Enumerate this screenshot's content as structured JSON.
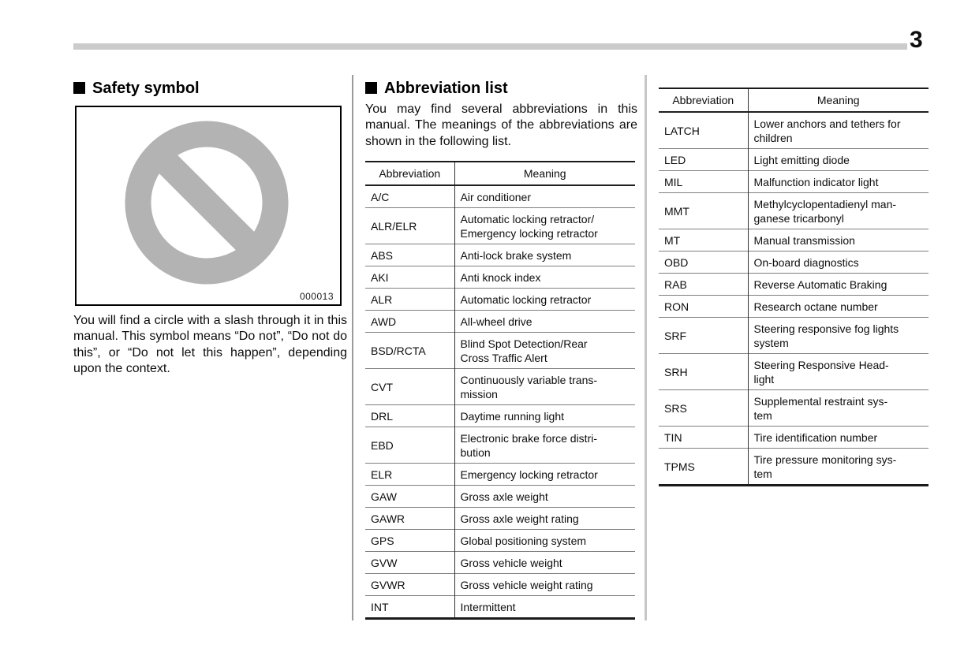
{
  "page": {
    "number": "3"
  },
  "colors": {
    "page_bar": "#cbcbcb",
    "prohibition_gray": "#b3b3b3",
    "table_border": "#1a1a1a",
    "row_line": "#7f7f7f"
  },
  "safety_symbol": {
    "heading": "Safety symbol",
    "figure_code": "000013",
    "icon": "prohibition-circle-slash",
    "body": "You will find a circle with a slash through it in this manual. This symbol means “Do not”, “Do not do this”, or “Do not let this happen”, depending upon the context."
  },
  "abbreviation_list": {
    "heading": "Abbreviation list",
    "intro": "You may find several abbreviations in this manual. The meanings of the abbreviations are shown in the following list.",
    "columns": {
      "abbr": "Abbreviation",
      "meaning": "Meaning"
    },
    "table1": [
      {
        "abbr": "A/C",
        "meaning": "Air conditioner"
      },
      {
        "abbr": "ALR/ELR",
        "meaning": "Automatic locking retractor/\nEmergency locking retractor"
      },
      {
        "abbr": "ABS",
        "meaning": "Anti-lock brake system"
      },
      {
        "abbr": "AKI",
        "meaning": "Anti knock index"
      },
      {
        "abbr": "ALR",
        "meaning": "Automatic locking retractor"
      },
      {
        "abbr": "AWD",
        "meaning": "All-wheel drive"
      },
      {
        "abbr": "BSD/RCTA",
        "meaning": "Blind Spot Detection/Rear\nCross Traffic Alert"
      },
      {
        "abbr": "CVT",
        "meaning": "Continuously variable trans-\nmission"
      },
      {
        "abbr": "DRL",
        "meaning": "Daytime running light"
      },
      {
        "abbr": "EBD",
        "meaning": "Electronic brake force distri-\nbution"
      },
      {
        "abbr": "ELR",
        "meaning": "Emergency locking retractor"
      },
      {
        "abbr": "GAW",
        "meaning": "Gross axle weight"
      },
      {
        "abbr": "GAWR",
        "meaning": "Gross axle weight rating"
      },
      {
        "abbr": "GPS",
        "meaning": "Global positioning system"
      },
      {
        "abbr": "GVW",
        "meaning": "Gross vehicle weight"
      },
      {
        "abbr": "GVWR",
        "meaning": "Gross vehicle weight rating"
      },
      {
        "abbr": "INT",
        "meaning": "Intermittent"
      }
    ],
    "table2": [
      {
        "abbr": "LATCH",
        "meaning": "Lower anchors and tethers for\nchildren"
      },
      {
        "abbr": "LED",
        "meaning": "Light emitting diode"
      },
      {
        "abbr": "MIL",
        "meaning": "Malfunction indicator light"
      },
      {
        "abbr": "MMT",
        "meaning": "Methylcyclopentadienyl man-\nganese tricarbonyl"
      },
      {
        "abbr": "MT",
        "meaning": "Manual transmission"
      },
      {
        "abbr": "OBD",
        "meaning": "On-board diagnostics"
      },
      {
        "abbr": "RAB",
        "meaning": "Reverse Automatic Braking"
      },
      {
        "abbr": "RON",
        "meaning": "Research octane number"
      },
      {
        "abbr": "SRF",
        "meaning": "Steering responsive fog lights\nsystem"
      },
      {
        "abbr": "SRH",
        "meaning": "Steering Responsive Head-\nlight"
      },
      {
        "abbr": "SRS",
        "meaning": "Supplemental restraint sys-\ntem"
      },
      {
        "abbr": "TIN",
        "meaning": "Tire identification number"
      },
      {
        "abbr": "TPMS",
        "meaning": "Tire pressure monitoring sys-\ntem"
      }
    ]
  }
}
